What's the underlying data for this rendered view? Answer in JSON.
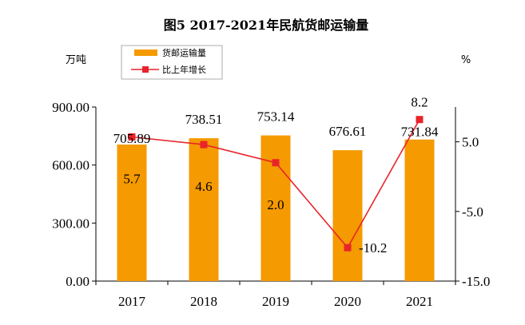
{
  "chart_data": {
    "type": "bar+line",
    "title": "图5  2017-2021年民航货邮运输量",
    "categories": [
      "2017",
      "2018",
      "2019",
      "2020",
      "2021"
    ],
    "left_unit": "万吨",
    "right_unit": "%",
    "ylim_left": [
      0,
      900
    ],
    "yticks_left": [
      "0.00",
      "300.00",
      "600.00",
      "900.00"
    ],
    "ylim_right": [
      -15,
      10
    ],
    "yticks_right": [
      "-15.0",
      "-5.0",
      "5.0"
    ],
    "series": [
      {
        "name": "货邮运输量",
        "type": "bar",
        "axis": "left",
        "color": "#f59a00",
        "values": [
          705.89,
          738.51,
          753.14,
          676.61,
          731.84
        ],
        "labels": [
          "705.89",
          "738.51",
          "753.14",
          "676.61",
          "731.84"
        ]
      },
      {
        "name": "比上年增长",
        "type": "line",
        "axis": "right",
        "color": "#e8242b",
        "values": [
          5.7,
          4.6,
          2.0,
          -10.2,
          8.2
        ],
        "labels": [
          "5.7",
          "4.6",
          "2.0",
          "-10.2",
          "8.2"
        ]
      }
    ],
    "legend_position": "top-left",
    "grid": false
  }
}
